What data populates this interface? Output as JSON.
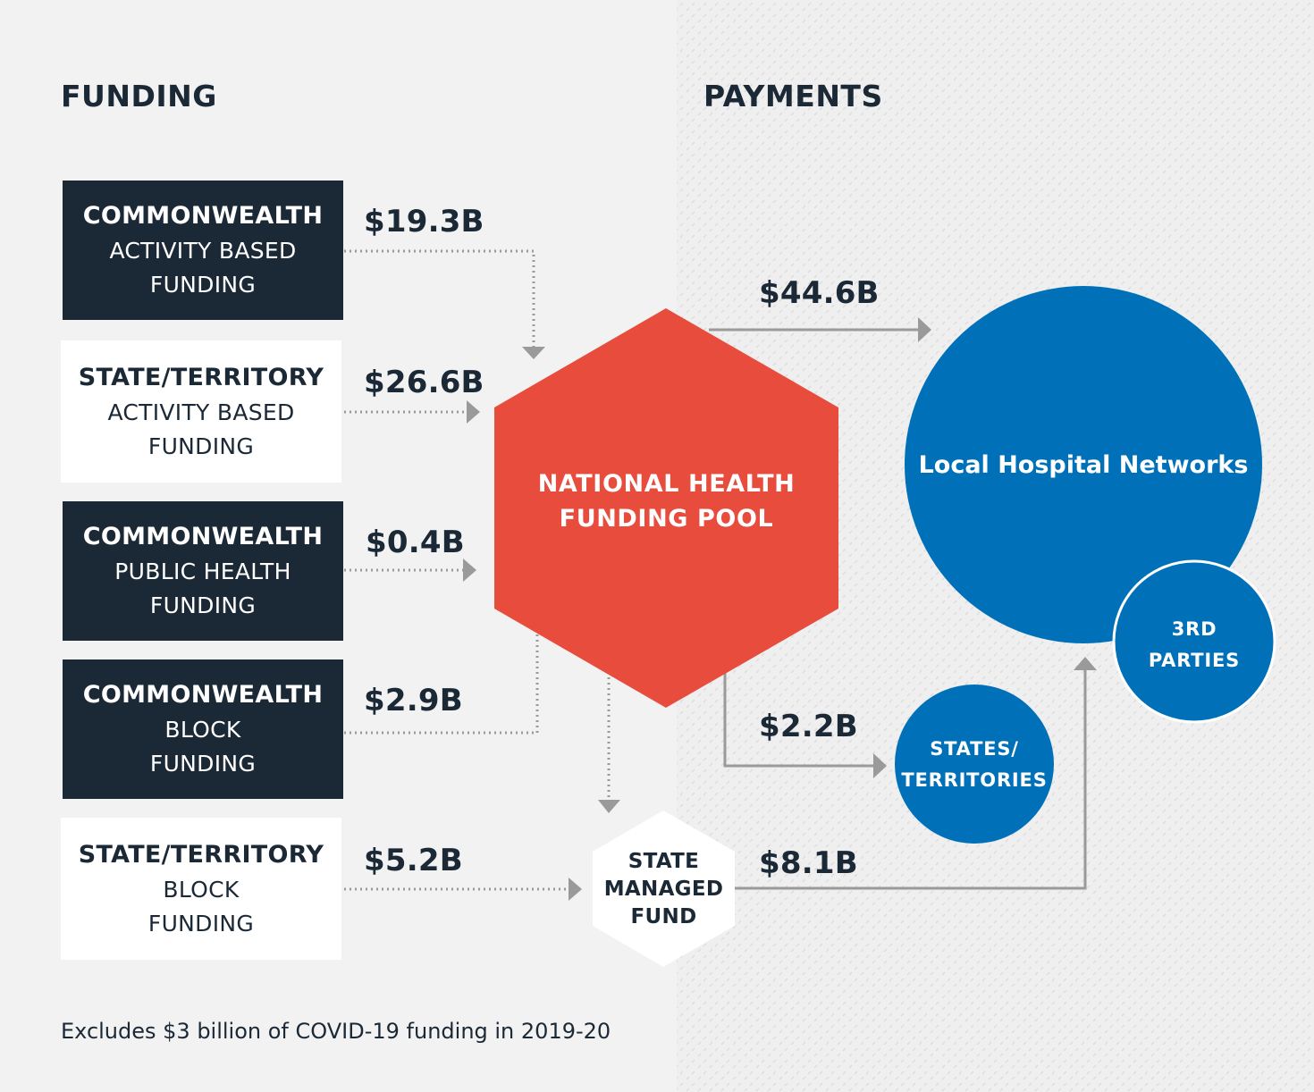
{
  "headings": {
    "funding": "FUNDING",
    "payments": "PAYMENTS"
  },
  "sources": [
    {
      "title": "COMMONWEALTH",
      "line1": "ACTIVITY BASED",
      "line2": "FUNDING",
      "amount": "$19.3B"
    },
    {
      "title": "STATE/TERRITORY",
      "line1": "ACTIVITY BASED",
      "line2": "FUNDING",
      "amount": "$26.6B"
    },
    {
      "title": "COMMONWEALTH",
      "line1": "PUBLIC HEALTH",
      "line2": "FUNDING",
      "amount": "$0.4B"
    },
    {
      "title": "COMMONWEALTH",
      "line1": "BLOCK",
      "line2": "FUNDING",
      "amount": "$2.9B"
    },
    {
      "title": "STATE/TERRITORY",
      "line1": "BLOCK",
      "line2": "FUNDING",
      "amount": "$5.2B"
    }
  ],
  "pool": {
    "line1": "NATIONAL HEALTH",
    "line2": "FUNDING POOL"
  },
  "fund": {
    "line1": "STATE",
    "line2": "MANAGED",
    "line3": "FUND"
  },
  "payments": {
    "lhn_amount": "$44.6B",
    "states_amount": "$2.2B",
    "fund_amount": "$8.1B"
  },
  "recipients": {
    "lhn": "Local Hospital Networks",
    "third_line1": "3RD",
    "third_line2": "PARTIES",
    "states_line1": "STATES/",
    "states_line2": "TERRITORIES"
  },
  "footnote": "Excludes $3 billion of COVID-19 funding in 2019-20",
  "colors": {
    "navy": "#1b2836",
    "red": "#e84c3d",
    "blue": "#0071b9",
    "arrow_gray": "#9a9a9a",
    "background": "#f2f2f2"
  }
}
